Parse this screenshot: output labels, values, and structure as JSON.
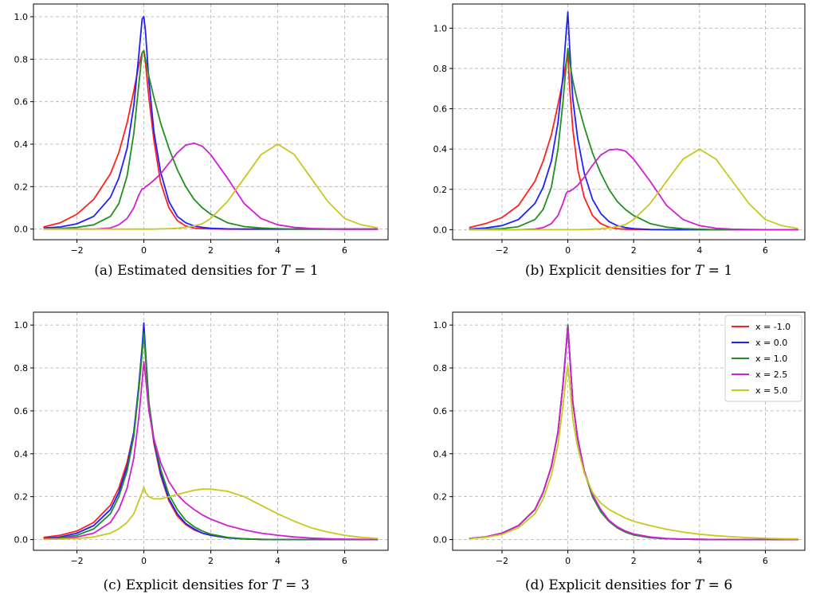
{
  "colors": {
    "x = -1.0": "#ff2020",
    "x = 0.0": "#2020ff",
    "x = 1.0": "#209020",
    "x = 2.5": "#d020d0",
    "x = 5.0": "#c8c820"
  },
  "chart_data": [
    {
      "type": "line",
      "caption": "(a) Estimated densities for T = 1",
      "xlim": [
        -3.3,
        7.3
      ],
      "ylim": [
        -0.05,
        1.06
      ],
      "xticks": [
        -2,
        0,
        2,
        4,
        6
      ],
      "yticks": [
        0.0,
        0.2,
        0.4,
        0.6,
        0.8,
        1.0
      ],
      "grid": true,
      "show_legend": false,
      "x": [
        -3,
        -2.5,
        -2,
        -1.5,
        -1,
        -0.75,
        -0.5,
        -0.3,
        -0.15,
        -0.05,
        0,
        0.05,
        0.15,
        0.3,
        0.5,
        0.75,
        1,
        1.25,
        1.5,
        1.75,
        2,
        2.5,
        3,
        3.5,
        4,
        4.5,
        5,
        5.5,
        6,
        6.5,
        7
      ],
      "series": [
        {
          "name": "x = -1.0",
          "values": [
            0.01,
            0.03,
            0.07,
            0.14,
            0.26,
            0.36,
            0.5,
            0.65,
            0.77,
            0.83,
            0.84,
            0.78,
            0.62,
            0.42,
            0.22,
            0.1,
            0.04,
            0.015,
            0.005,
            0.002,
            0.001,
            0,
            0,
            0,
            0,
            0,
            0,
            0,
            0,
            0,
            0
          ]
        },
        {
          "name": "x = 0.0",
          "values": [
            0.005,
            0.01,
            0.025,
            0.06,
            0.15,
            0.24,
            0.38,
            0.58,
            0.82,
            0.99,
            1.0,
            0.93,
            0.7,
            0.46,
            0.27,
            0.13,
            0.06,
            0.03,
            0.015,
            0.008,
            0.004,
            0.001,
            0,
            0,
            0,
            0,
            0,
            0,
            0,
            0,
            0
          ]
        },
        {
          "name": "x = 1.0",
          "values": [
            0.001,
            0.003,
            0.008,
            0.02,
            0.06,
            0.12,
            0.25,
            0.45,
            0.68,
            0.83,
            0.84,
            0.8,
            0.72,
            0.62,
            0.5,
            0.38,
            0.28,
            0.2,
            0.14,
            0.1,
            0.07,
            0.03,
            0.012,
            0.005,
            0.002,
            0,
            0,
            0,
            0,
            0,
            0
          ]
        },
        {
          "name": "x = 2.5",
          "values": [
            0,
            0,
            0,
            0,
            0.005,
            0.02,
            0.05,
            0.1,
            0.16,
            0.19,
            0.19,
            0.2,
            0.21,
            0.23,
            0.26,
            0.31,
            0.36,
            0.395,
            0.405,
            0.39,
            0.35,
            0.24,
            0.12,
            0.05,
            0.02,
            0.008,
            0.003,
            0.001,
            0,
            0,
            0
          ]
        },
        {
          "name": "x = 5.0",
          "values": [
            0,
            0,
            0,
            0,
            0,
            0,
            0,
            0,
            0,
            0,
            0,
            0,
            0,
            0,
            0.001,
            0.002,
            0.004,
            0.008,
            0.015,
            0.025,
            0.05,
            0.13,
            0.24,
            0.35,
            0.4,
            0.35,
            0.24,
            0.13,
            0.05,
            0.02,
            0.005
          ]
        }
      ]
    },
    {
      "type": "line",
      "caption": "(b) Explicit densities for T = 1",
      "xlim": [
        -3.5,
        7.2
      ],
      "ylim": [
        -0.05,
        1.12
      ],
      "xticks": [
        -2,
        0,
        2,
        4,
        6
      ],
      "yticks": [
        0.0,
        0.2,
        0.4,
        0.6,
        0.8,
        1.0
      ],
      "grid": true,
      "show_legend": false,
      "x": [
        -3,
        -2.5,
        -2,
        -1.5,
        -1,
        -0.75,
        -0.5,
        -0.3,
        -0.15,
        -0.05,
        0,
        0.05,
        0.15,
        0.3,
        0.5,
        0.75,
        1,
        1.25,
        1.5,
        1.75,
        2,
        2.5,
        3,
        3.5,
        4,
        4.5,
        5,
        5.5,
        6,
        6.5,
        7
      ],
      "series": [
        {
          "name": "x = -1.0",
          "values": [
            0.01,
            0.03,
            0.06,
            0.12,
            0.24,
            0.34,
            0.47,
            0.62,
            0.74,
            0.83,
            0.87,
            0.72,
            0.5,
            0.3,
            0.16,
            0.07,
            0.03,
            0.012,
            0.005,
            0.002,
            0.001,
            0,
            0,
            0,
            0,
            0,
            0,
            0,
            0,
            0,
            0
          ]
        },
        {
          "name": "x = 0.0",
          "values": [
            0.003,
            0.008,
            0.02,
            0.05,
            0.13,
            0.21,
            0.34,
            0.53,
            0.76,
            0.98,
            1.08,
            0.92,
            0.65,
            0.45,
            0.28,
            0.15,
            0.08,
            0.04,
            0.02,
            0.01,
            0.005,
            0.001,
            0,
            0,
            0,
            0,
            0,
            0,
            0,
            0,
            0
          ]
        },
        {
          "name": "x = 1.0",
          "values": [
            0.001,
            0.002,
            0.005,
            0.015,
            0.05,
            0.1,
            0.21,
            0.4,
            0.63,
            0.82,
            0.9,
            0.84,
            0.74,
            0.63,
            0.51,
            0.38,
            0.28,
            0.2,
            0.14,
            0.1,
            0.07,
            0.03,
            0.012,
            0.005,
            0.002,
            0,
            0,
            0,
            0,
            0,
            0
          ]
        },
        {
          "name": "x = 2.5",
          "values": [
            0,
            0,
            0,
            0,
            0.003,
            0.01,
            0.03,
            0.07,
            0.13,
            0.18,
            0.19,
            0.19,
            0.2,
            0.22,
            0.26,
            0.32,
            0.37,
            0.395,
            0.4,
            0.39,
            0.35,
            0.24,
            0.12,
            0.05,
            0.02,
            0.007,
            0.002,
            0.001,
            0,
            0,
            0
          ]
        },
        {
          "name": "x = 5.0",
          "values": [
            0,
            0,
            0,
            0,
            0,
            0,
            0,
            0,
            0,
            0,
            0,
            0,
            0,
            0,
            0.001,
            0.002,
            0.004,
            0.008,
            0.015,
            0.025,
            0.05,
            0.13,
            0.24,
            0.35,
            0.4,
            0.35,
            0.24,
            0.13,
            0.05,
            0.02,
            0.005
          ]
        }
      ]
    },
    {
      "type": "line",
      "caption": "(c) Explicit densities for T = 3",
      "xlim": [
        -3.3,
        7.3
      ],
      "ylim": [
        -0.05,
        1.06
      ],
      "xticks": [
        -2,
        0,
        2,
        4,
        6
      ],
      "yticks": [
        0.0,
        0.2,
        0.4,
        0.6,
        0.8,
        1.0
      ],
      "grid": true,
      "show_legend": false,
      "x": [
        -3,
        -2.5,
        -2,
        -1.5,
        -1,
        -0.75,
        -0.5,
        -0.3,
        -0.15,
        -0.05,
        0,
        0.05,
        0.15,
        0.3,
        0.5,
        0.75,
        1,
        1.25,
        1.5,
        1.75,
        2,
        2.5,
        3,
        3.5,
        4,
        4.5,
        5,
        5.5,
        6,
        6.5,
        7
      ],
      "series": [
        {
          "name": "x = -1.0",
          "values": [
            0.01,
            0.02,
            0.04,
            0.08,
            0.16,
            0.24,
            0.36,
            0.5,
            0.7,
            0.88,
            0.98,
            0.85,
            0.62,
            0.45,
            0.3,
            0.18,
            0.11,
            0.07,
            0.045,
            0.03,
            0.02,
            0.008,
            0.003,
            0.001,
            0,
            0,
            0,
            0,
            0,
            0,
            0
          ]
        },
        {
          "name": "x = 0.0",
          "values": [
            0.005,
            0.012,
            0.03,
            0.065,
            0.14,
            0.22,
            0.34,
            0.5,
            0.72,
            0.9,
            1.01,
            0.88,
            0.64,
            0.46,
            0.31,
            0.19,
            0.12,
            0.075,
            0.05,
            0.03,
            0.02,
            0.008,
            0.003,
            0.001,
            0,
            0,
            0,
            0,
            0,
            0,
            0
          ]
        },
        {
          "name": "x = 1.0",
          "values": [
            0.003,
            0.008,
            0.02,
            0.05,
            0.12,
            0.2,
            0.32,
            0.48,
            0.7,
            0.87,
            0.96,
            0.86,
            0.64,
            0.47,
            0.33,
            0.21,
            0.14,
            0.09,
            0.06,
            0.04,
            0.025,
            0.01,
            0.004,
            0.001,
            0,
            0,
            0,
            0,
            0,
            0,
            0
          ]
        },
        {
          "name": "x = 2.5",
          "values": [
            0.002,
            0.005,
            0.012,
            0.03,
            0.08,
            0.14,
            0.24,
            0.38,
            0.57,
            0.74,
            0.83,
            0.76,
            0.6,
            0.47,
            0.36,
            0.27,
            0.21,
            0.17,
            0.14,
            0.115,
            0.095,
            0.065,
            0.045,
            0.03,
            0.02,
            0.012,
            0.007,
            0.004,
            0.002,
            0.001,
            0
          ]
        },
        {
          "name": "x = 5.0",
          "values": [
            0.001,
            0.002,
            0.005,
            0.012,
            0.03,
            0.05,
            0.08,
            0.12,
            0.18,
            0.22,
            0.245,
            0.22,
            0.2,
            0.19,
            0.19,
            0.2,
            0.21,
            0.22,
            0.23,
            0.235,
            0.235,
            0.225,
            0.2,
            0.16,
            0.12,
            0.085,
            0.055,
            0.035,
            0.02,
            0.01,
            0.005
          ]
        }
      ]
    },
    {
      "type": "line",
      "caption": "(d) Explicit densities for T = 6",
      "xlim": [
        -3.5,
        7.2
      ],
      "ylim": [
        -0.05,
        1.06
      ],
      "xticks": [
        -2,
        0,
        2,
        4,
        6
      ],
      "yticks": [
        0.0,
        0.2,
        0.4,
        0.6,
        0.8,
        1.0
      ],
      "grid": true,
      "show_legend": true,
      "legend_loc": "top-right",
      "x": [
        -3,
        -2.5,
        -2,
        -1.5,
        -1,
        -0.75,
        -0.5,
        -0.3,
        -0.15,
        -0.05,
        0,
        0.05,
        0.15,
        0.3,
        0.5,
        0.75,
        1,
        1.25,
        1.5,
        1.75,
        2,
        2.5,
        3,
        3.5,
        4,
        4.5,
        5,
        5.5,
        6,
        6.5,
        7
      ],
      "series": [
        {
          "name": "x = -1.0",
          "values": [
            0.005,
            0.012,
            0.03,
            0.065,
            0.14,
            0.22,
            0.34,
            0.5,
            0.72,
            0.9,
            1.0,
            0.88,
            0.64,
            0.47,
            0.32,
            0.2,
            0.13,
            0.085,
            0.055,
            0.035,
            0.022,
            0.009,
            0.004,
            0.002,
            0.001,
            0,
            0,
            0,
            0,
            0,
            0
          ]
        },
        {
          "name": "x = 0.0",
          "values": [
            0.005,
            0.012,
            0.03,
            0.065,
            0.14,
            0.22,
            0.34,
            0.5,
            0.72,
            0.9,
            1.0,
            0.88,
            0.64,
            0.47,
            0.32,
            0.2,
            0.13,
            0.085,
            0.055,
            0.035,
            0.022,
            0.009,
            0.004,
            0.002,
            0.001,
            0,
            0,
            0,
            0,
            0,
            0
          ]
        },
        {
          "name": "x = 1.0",
          "values": [
            0.005,
            0.012,
            0.03,
            0.065,
            0.14,
            0.22,
            0.34,
            0.5,
            0.72,
            0.9,
            1.0,
            0.88,
            0.64,
            0.47,
            0.32,
            0.2,
            0.13,
            0.085,
            0.055,
            0.035,
            0.022,
            0.009,
            0.004,
            0.002,
            0.001,
            0,
            0,
            0,
            0,
            0,
            0
          ]
        },
        {
          "name": "x = 2.5",
          "values": [
            0.005,
            0.012,
            0.03,
            0.065,
            0.14,
            0.22,
            0.34,
            0.5,
            0.72,
            0.9,
            0.99,
            0.88,
            0.64,
            0.47,
            0.32,
            0.21,
            0.14,
            0.09,
            0.06,
            0.04,
            0.026,
            0.012,
            0.005,
            0.002,
            0.001,
            0,
            0,
            0,
            0,
            0,
            0
          ]
        },
        {
          "name": "x = 5.0",
          "values": [
            0.004,
            0.01,
            0.024,
            0.055,
            0.12,
            0.19,
            0.3,
            0.44,
            0.62,
            0.76,
            0.81,
            0.74,
            0.56,
            0.43,
            0.31,
            0.22,
            0.17,
            0.14,
            0.12,
            0.1,
            0.085,
            0.065,
            0.048,
            0.035,
            0.025,
            0.018,
            0.013,
            0.009,
            0.006,
            0.004,
            0.003
          ]
        }
      ]
    }
  ]
}
